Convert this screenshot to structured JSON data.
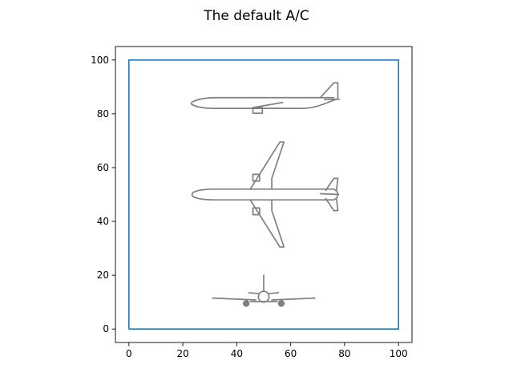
{
  "chart_data": {
    "type": "line",
    "title": "The default A/C",
    "xlabel": "",
    "ylabel": "",
    "xlim": [
      -5,
      105
    ],
    "ylim": [
      -5,
      105
    ],
    "x_ticks": [
      0,
      20,
      40,
      60,
      80,
      100
    ],
    "y_ticks": [
      0,
      20,
      40,
      60,
      80,
      100
    ],
    "grid": false,
    "series": [
      {
        "values": [
          [
            0,
            0
          ],
          [
            100,
            0
          ],
          [
            100,
            100
          ],
          [
            0,
            100
          ],
          [
            0,
            0
          ]
        ],
        "color": "#1f77b4"
      }
    ],
    "drawings": [
      {
        "view": "side",
        "center": [
          50,
          84
        ],
        "color": "#808080"
      },
      {
        "view": "top",
        "center": [
          50,
          50
        ],
        "color": "#808080"
      },
      {
        "view": "front",
        "center": [
          50,
          12
        ],
        "color": "#808080"
      }
    ]
  }
}
